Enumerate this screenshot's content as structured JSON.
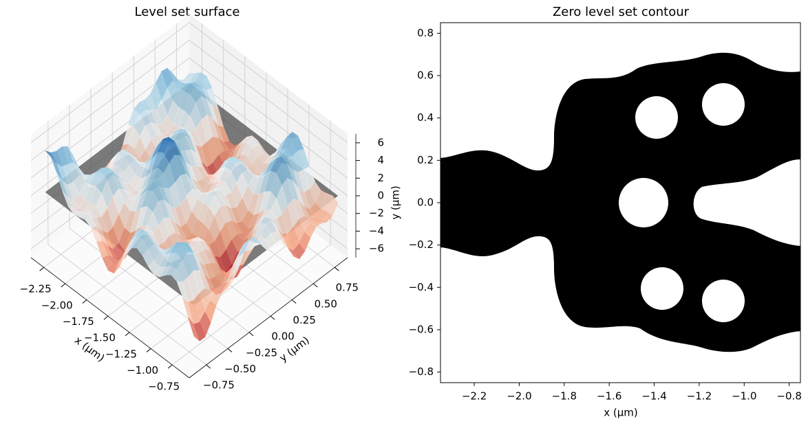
{
  "chart_data": [
    {
      "type": "surface3d",
      "title": "Level set surface",
      "xlabel": "x (μm)",
      "ylabel": "y (μm)",
      "zlabel": "y (μm)",
      "xlim": [
        -2.4,
        -0.55
      ],
      "ylim": [
        -0.95,
        0.9
      ],
      "zlim": [
        -7,
        7
      ],
      "xticks": [
        {
          "value": -2.25,
          "label": "−2.25"
        },
        {
          "value": -2.0,
          "label": "−2.00"
        },
        {
          "value": -1.75,
          "label": "−1.75"
        },
        {
          "value": -1.5,
          "label": "−1.50"
        },
        {
          "value": -1.25,
          "label": "−1.25"
        },
        {
          "value": -1.0,
          "label": "−1.00"
        },
        {
          "value": -0.75,
          "label": "−0.75"
        }
      ],
      "yticks": [
        {
          "value": -0.75,
          "label": "−0.75"
        },
        {
          "value": -0.5,
          "label": "−0.50"
        },
        {
          "value": -0.25,
          "label": "−0.25"
        },
        {
          "value": 0,
          "label": "0.00"
        },
        {
          "value": 0.25,
          "label": "0.25"
        },
        {
          "value": 0.5,
          "label": "0.50"
        },
        {
          "value": 0.75,
          "label": "0.75"
        }
      ],
      "zticks": [
        6,
        4,
        2,
        0,
        {
          "value": -2,
          "label": "−2"
        },
        {
          "value": -4,
          "label": "−4"
        },
        {
          "value": -6,
          "label": "−6"
        }
      ],
      "grid": true
    },
    {
      "type": "contour",
      "title": "Zero level set contour",
      "xlabel": "x (μm)",
      "xlim": [
        -2.35,
        -0.75
      ],
      "ylim": [
        -0.85,
        0.85
      ],
      "xticks": [
        {
          "value": -2.2,
          "label": "−2.2"
        },
        {
          "value": -2.0,
          "label": "−2.0"
        },
        {
          "value": -1.8,
          "label": "−1.8"
        },
        {
          "value": -1.6,
          "label": "−1.6"
        },
        {
          "value": -1.4,
          "label": "−1.4"
        },
        {
          "value": -1.2,
          "label": "−1.2"
        },
        {
          "value": -1.0,
          "label": "−1.0"
        },
        {
          "value": -0.8,
          "label": "−0.8"
        }
      ],
      "yticks": [
        0.8,
        0.6,
        0.4,
        0.2,
        {
          "value": 0,
          "label": "0.0"
        },
        {
          "value": -0.2,
          "label": "−0.2"
        },
        {
          "value": -0.4,
          "label": "−0.4"
        },
        {
          "value": -0.6,
          "label": "−0.6"
        },
        {
          "value": -0.8,
          "label": "−0.8"
        }
      ],
      "color": "#000000"
    }
  ]
}
